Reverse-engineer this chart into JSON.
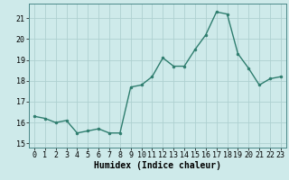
{
  "x": [
    0,
    1,
    2,
    3,
    4,
    5,
    6,
    7,
    8,
    9,
    10,
    11,
    12,
    13,
    14,
    15,
    16,
    17,
    18,
    19,
    20,
    21,
    22,
    23
  ],
  "y": [
    16.3,
    16.2,
    16.0,
    16.1,
    15.5,
    15.6,
    15.7,
    15.5,
    15.5,
    17.7,
    17.8,
    18.2,
    19.1,
    18.7,
    18.7,
    19.5,
    20.2,
    21.3,
    21.2,
    19.3,
    18.6,
    17.8,
    18.1,
    18.2
  ],
  "title": "",
  "xlabel": "Humidex (Indice chaleur)",
  "ylabel": "",
  "xlim": [
    -0.5,
    23.5
  ],
  "ylim": [
    14.8,
    21.7
  ],
  "yticks": [
    15,
    16,
    17,
    18,
    19,
    20,
    21
  ],
  "xticks": [
    0,
    1,
    2,
    3,
    4,
    5,
    6,
    7,
    8,
    9,
    10,
    11,
    12,
    13,
    14,
    15,
    16,
    17,
    18,
    19,
    20,
    21,
    22,
    23
  ],
  "line_color": "#2e7d6e",
  "marker_color": "#2e7d6e",
  "bg_color": "#ceeaea",
  "grid_color": "#aed0d0",
  "label_fontsize": 7,
  "tick_fontsize": 6
}
